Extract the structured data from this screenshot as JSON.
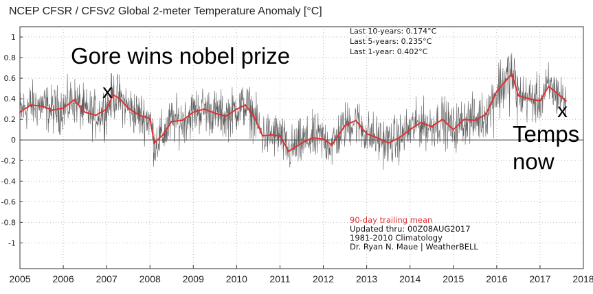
{
  "chart_data": {
    "type": "line",
    "title": "NCEP CFSR / CFSv2 Global 2-meter Temperature Anomaly [°C]",
    "xlabel": "",
    "ylabel": "",
    "xlim": [
      2005,
      2018
    ],
    "ylim": [
      -1.25,
      1.1
    ],
    "x_ticks": [
      "2005",
      "2006",
      "2007",
      "2008",
      "2009",
      "2010",
      "2011",
      "2012",
      "2013",
      "2014",
      "2015",
      "2016",
      "2017",
      "2018"
    ],
    "y_ticks": [
      "1",
      "0.8",
      "0.6",
      "0.4",
      "0.2",
      "0",
      "-0.2",
      "-0.4",
      "-0.6",
      "-0.8",
      "-1"
    ],
    "grid": true,
    "series": [
      {
        "name": "90-day trailing mean",
        "color": "#e03030",
        "x": [
          2005.0,
          2005.25,
          2005.5,
          2005.75,
          2006.0,
          2006.25,
          2006.5,
          2006.75,
          2007.0,
          2007.15,
          2007.3,
          2007.5,
          2007.75,
          2008.0,
          2008.1,
          2008.3,
          2008.5,
          2008.75,
          2009.0,
          2009.25,
          2009.5,
          2009.75,
          2010.0,
          2010.2,
          2010.4,
          2010.6,
          2010.8,
          2011.0,
          2011.2,
          2011.5,
          2011.75,
          2012.0,
          2012.2,
          2012.5,
          2012.75,
          2013.0,
          2013.25,
          2013.5,
          2013.75,
          2014.0,
          2014.25,
          2014.5,
          2014.75,
          2015.0,
          2015.25,
          2015.5,
          2015.75,
          2016.0,
          2016.2,
          2016.35,
          2016.5,
          2016.75,
          2017.0,
          2017.2,
          2017.4,
          2017.6
        ],
        "values": [
          0.27,
          0.34,
          0.33,
          0.29,
          0.31,
          0.39,
          0.27,
          0.24,
          0.3,
          0.44,
          0.4,
          0.31,
          0.24,
          0.21,
          -0.03,
          0.05,
          0.18,
          0.19,
          0.27,
          0.3,
          0.26,
          0.23,
          0.3,
          0.34,
          0.23,
          0.04,
          0.05,
          0.04,
          -0.11,
          -0.03,
          0.02,
          0.01,
          -0.05,
          0.14,
          0.19,
          0.06,
          0.02,
          -0.03,
          0.02,
          0.1,
          0.17,
          0.13,
          0.2,
          0.1,
          0.2,
          0.19,
          0.25,
          0.47,
          0.57,
          0.64,
          0.43,
          0.4,
          0.38,
          0.52,
          0.45,
          0.38
        ]
      }
    ],
    "stats": [
      "Last 10-years: 0.174°C",
      "Last 5-years: 0.235°C",
      "Last 1-year:  0.402°C"
    ],
    "notes": {
      "mean_label": "90-day trailing mean",
      "updated": "Updated thru: 00Z08AUG2017",
      "climatology": "1981-2010 Climatology",
      "credit": "Dr. Ryan N. Maue | WeatherBELL"
    },
    "annotations": {
      "gore": "Gore wins nobel prize",
      "mark_left": "x",
      "mark_right": "x",
      "temps": "Temps",
      "now": "now"
    }
  }
}
